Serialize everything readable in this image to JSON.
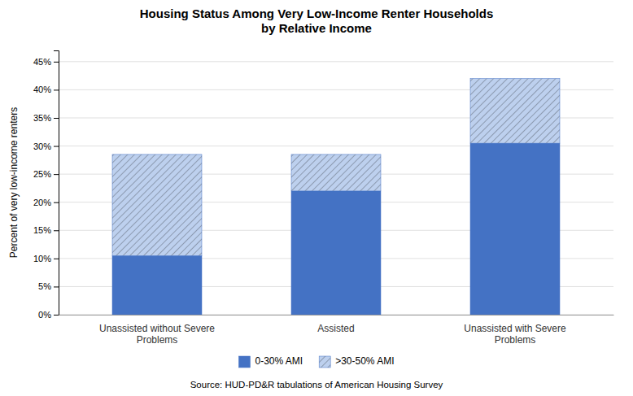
{
  "chart_data": {
    "type": "bar",
    "stacked": true,
    "title": "Housing Status Among Very Low-Income Renter Households\nby Relative Income",
    "ylabel": "Percent of very low-income renters",
    "annotation": "Source: HUD-PD&R tabulations of American Housing Survey",
    "categories": [
      "Unassisted without Severe\nProblems",
      "Assisted",
      "Unassisted with Severe\nProblems"
    ],
    "series": [
      {
        "name": "0-30% AMI",
        "color": "#4472C4",
        "values": [
          10.5,
          22.0,
          30.5
        ]
      },
      {
        "name": ">30-50% AMI",
        "color": "#BDD0EE",
        "values": [
          18.0,
          6.5,
          11.5
        ]
      }
    ],
    "ylim": [
      0,
      47
    ],
    "yticks": [
      {
        "value": 0,
        "label": "0%"
      },
      {
        "value": 5,
        "label": "5%"
      },
      {
        "value": 10,
        "label": "10%"
      },
      {
        "value": 15,
        "label": "15%"
      },
      {
        "value": 20,
        "label": "20%"
      },
      {
        "value": 25,
        "label": "25%"
      },
      {
        "value": 30,
        "label": "30%"
      },
      {
        "value": 35,
        "label": "35%"
      },
      {
        "value": 40,
        "label": "40%"
      },
      {
        "value": 45,
        "label": "45%"
      }
    ],
    "grid": true,
    "legend": "bottom"
  }
}
